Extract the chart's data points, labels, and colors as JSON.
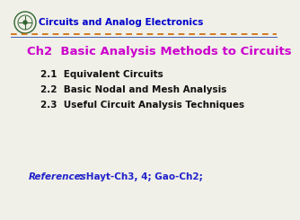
{
  "background_color": "#f0f0e8",
  "header_text": "Circuits and Analog Electronics",
  "header_color": "#0000cc",
  "header_fontsize": 7.5,
  "line1_color": "#cc6600",
  "line2_color": "#2244aa",
  "title_text": "Ch2  Basic Analysis Methods to Circuits",
  "title_color": "#cc00cc",
  "title_fontsize": 9.5,
  "items": [
    "2.1  Equivalent Circuits",
    "2.2  Basic Nodal and Mesh Analysis",
    "2.3  Useful Circuit Analysis Techniques"
  ],
  "item_color": "#111111",
  "item_fontsize": 7.5,
  "ref_label": "References",
  "ref_label_color": "#2222cc",
  "ref_text": ": Hayt-Ch3, 4; Gao-Ch2;",
  "ref_text_color": "#2222cc",
  "ref_fontsize": 7.5,
  "logo_color": "#336633"
}
